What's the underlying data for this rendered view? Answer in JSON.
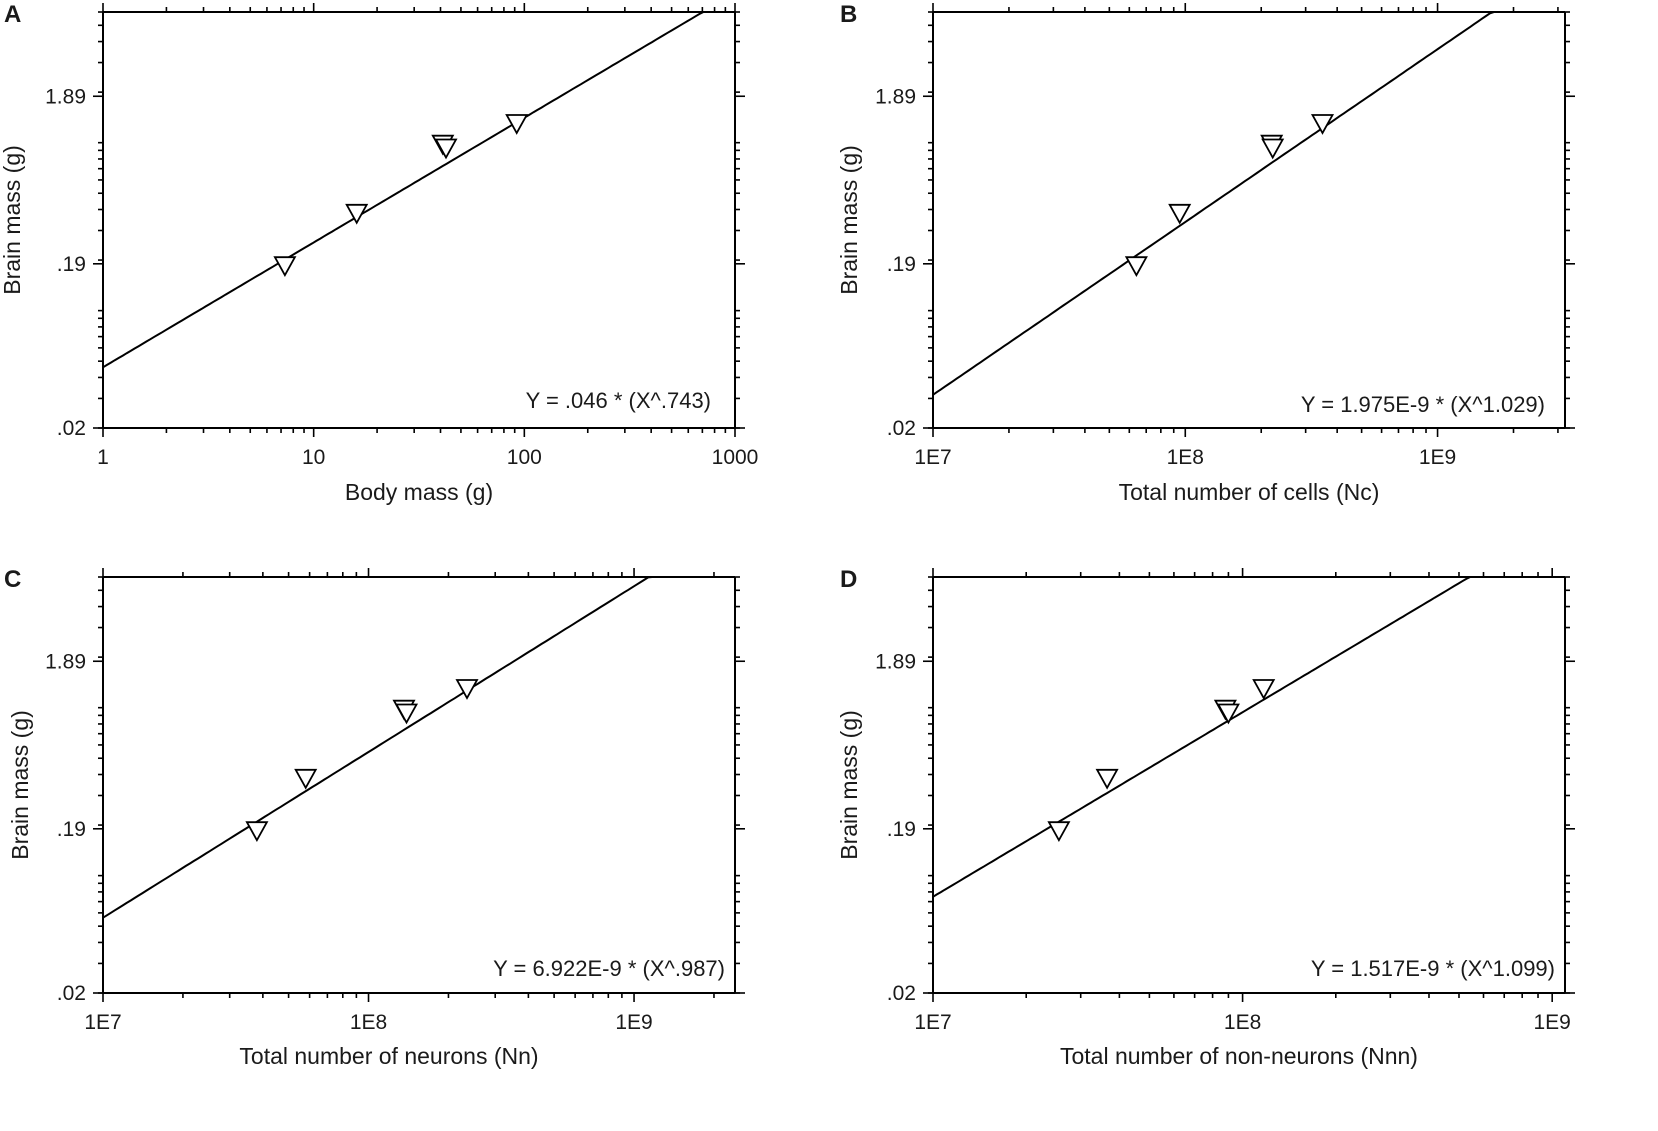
{
  "figure": {
    "panels": [
      "A",
      "B",
      "C",
      "D"
    ]
  },
  "chart_data": [
    {
      "panel": "A",
      "type": "scatter",
      "xlabel": "Body mass (g)",
      "ylabel": "Brain mass (g)",
      "xscale": "log",
      "yscale": "log",
      "xlim": [
        1,
        1000
      ],
      "ylim": [
        0.02,
        6.0
      ],
      "xticks": [
        {
          "value": 1,
          "label": "1"
        },
        {
          "value": 10,
          "label": "10"
        },
        {
          "value": 100,
          "label": "100"
        },
        {
          "value": 1000,
          "label": "1000"
        }
      ],
      "yticks": [
        {
          "value": 0.02,
          "label": ".02"
        },
        {
          "value": 0.19,
          "label": ".19"
        },
        {
          "value": 1.89,
          "label": "1.89"
        }
      ],
      "points": [
        {
          "x": 7.3,
          "y": 0.185
        },
        {
          "x": 16,
          "y": 0.38
        },
        {
          "x": 41,
          "y": 0.98
        },
        {
          "x": 42.5,
          "y": 0.93
        },
        {
          "x": 92,
          "y": 1.3
        }
      ],
      "fit": {
        "a": 0.046,
        "b": 0.743,
        "x_range": [
          1,
          1000
        ]
      },
      "equation": "Y = .046 * (X^.743)"
    },
    {
      "panel": "B",
      "type": "scatter",
      "xlabel": "Total number of cells (Nc)",
      "ylabel": "Brain mass (g)",
      "xscale": "log",
      "yscale": "log",
      "xlim": [
        10000000,
        3200000000
      ],
      "ylim": [
        0.02,
        6.0
      ],
      "xticks": [
        {
          "value": 10000000,
          "label": "1E7"
        },
        {
          "value": 100000000,
          "label": "1E8"
        },
        {
          "value": 1000000000,
          "label": "1E9"
        }
      ],
      "yticks": [
        {
          "value": 0.02,
          "label": ".02"
        },
        {
          "value": 0.19,
          "label": ".19"
        },
        {
          "value": 1.89,
          "label": "1.89"
        }
      ],
      "points": [
        {
          "x": 64000000,
          "y": 0.185
        },
        {
          "x": 95000000,
          "y": 0.38
        },
        {
          "x": 220000000,
          "y": 0.98
        },
        {
          "x": 222000000,
          "y": 0.93
        },
        {
          "x": 350000000,
          "y": 1.3
        }
      ],
      "fit": {
        "a": 1.975e-09,
        "b": 1.029,
        "x_range": [
          10000000,
          3200000000
        ]
      },
      "equation": "Y = 1.975E-9 * (X^1.029)"
    },
    {
      "panel": "C",
      "type": "scatter",
      "xlabel": "Total number of neurons (Nn)",
      "ylabel": "Brain mass (g)",
      "xscale": "log",
      "yscale": "log",
      "xlim": [
        10000000,
        2400000000
      ],
      "ylim": [
        0.02,
        6.0
      ],
      "xticks": [
        {
          "value": 10000000,
          "label": "1E7"
        },
        {
          "value": 100000000,
          "label": "1E8"
        },
        {
          "value": 1000000000,
          "label": "1E9"
        }
      ],
      "yticks": [
        {
          "value": 0.02,
          "label": ".02"
        },
        {
          "value": 0.19,
          "label": ".19"
        },
        {
          "value": 1.89,
          "label": "1.89"
        }
      ],
      "points": [
        {
          "x": 38000000,
          "y": 0.185
        },
        {
          "x": 58000000,
          "y": 0.38
        },
        {
          "x": 136000000,
          "y": 0.98
        },
        {
          "x": 139000000,
          "y": 0.93
        },
        {
          "x": 235000000,
          "y": 1.3
        }
      ],
      "fit": {
        "a": 6.922e-09,
        "b": 0.987,
        "x_range": [
          10000000,
          2400000000
        ]
      },
      "equation": "Y = 6.922E-9 * (X^.987)"
    },
    {
      "panel": "D",
      "type": "scatter",
      "xlabel": "Total number of non-neurons (Nnn)",
      "ylabel": "Brain mass (g)",
      "xscale": "log",
      "yscale": "log",
      "xlim": [
        10000000,
        1100000000
      ],
      "ylim": [
        0.02,
        6.0
      ],
      "xticks": [
        {
          "value": 10000000,
          "label": "1E7"
        },
        {
          "value": 100000000,
          "label": "1E8"
        },
        {
          "value": 1000000000,
          "label": "1E9"
        }
      ],
      "yticks": [
        {
          "value": 0.02,
          "label": ".02"
        },
        {
          "value": 0.19,
          "label": ".19"
        },
        {
          "value": 1.89,
          "label": "1.89"
        }
      ],
      "points": [
        {
          "x": 25500000,
          "y": 0.185
        },
        {
          "x": 36500000,
          "y": 0.38
        },
        {
          "x": 88000000,
          "y": 0.98
        },
        {
          "x": 90000000,
          "y": 0.93
        },
        {
          "x": 117000000,
          "y": 1.3
        }
      ],
      "fit": {
        "a": 1.517e-09,
        "b": 1.099,
        "x_range": [
          10000000,
          1100000000
        ]
      },
      "equation": "Y = 1.517E-9 * (X^1.099)"
    }
  ]
}
